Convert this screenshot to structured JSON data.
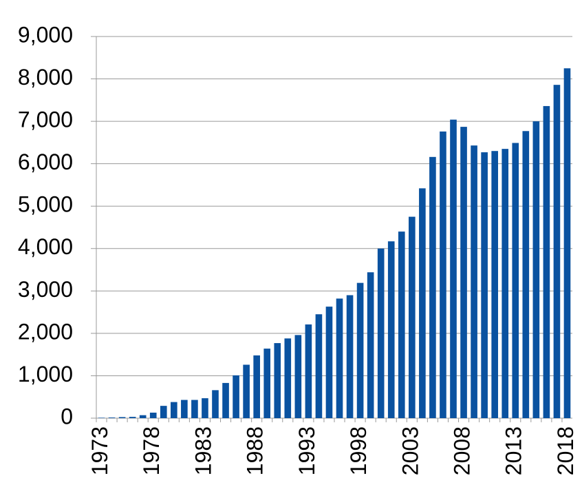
{
  "chart_data": {
    "type": "bar",
    "categories": [
      "1973",
      null,
      null,
      null,
      null,
      "1978",
      null,
      null,
      null,
      null,
      "1983",
      null,
      null,
      null,
      null,
      "1988",
      null,
      null,
      null,
      null,
      "1993",
      null,
      null,
      null,
      null,
      "1998",
      null,
      null,
      null,
      null,
      "2003",
      null,
      null,
      null,
      null,
      "2008",
      null,
      null,
      null,
      null,
      "2013",
      null,
      null,
      null,
      null,
      "2018"
    ],
    "values": [
      10,
      15,
      25,
      30,
      70,
      130,
      290,
      380,
      430,
      430,
      470,
      660,
      830,
      1010,
      1260,
      1480,
      1640,
      1770,
      1880,
      1960,
      2210,
      2450,
      2630,
      2820,
      2900,
      3190,
      3440,
      4000,
      4170,
      4400,
      4750,
      5420,
      6160,
      6760,
      7040,
      6870,
      6430,
      6270,
      6300,
      6350,
      6490,
      6770,
      7000,
      7360,
      7860,
      8250
    ],
    "color": "#0a52a0",
    "ylim": [
      0,
      9000
    ],
    "yticks": [
      0,
      {
        "value": 1000,
        "label": "1,000"
      },
      {
        "value": 2000,
        "label": "2,000"
      },
      {
        "value": 3000,
        "label": "3,000"
      },
      {
        "value": 4000,
        "label": "4,000"
      },
      {
        "value": 5000,
        "label": "5,000"
      },
      {
        "value": 6000,
        "label": "6,000"
      },
      {
        "value": 7000,
        "label": "7,000"
      },
      {
        "value": 8000,
        "label": "8,000"
      },
      {
        "value": 9000,
        "label": "9,000"
      }
    ],
    "grid": true
  }
}
